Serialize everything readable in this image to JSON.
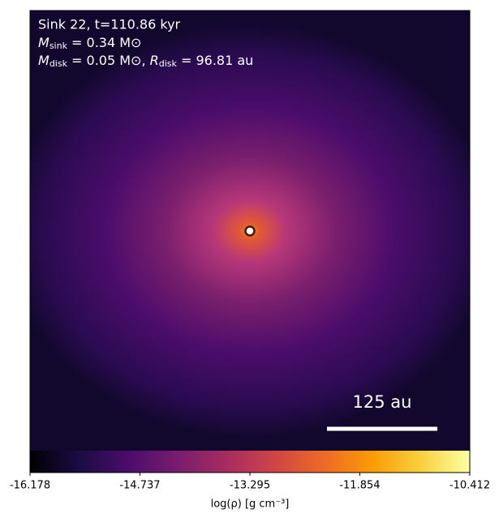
{
  "chart_data": {
    "type": "density-map",
    "title": {
      "sink": "Sink 22, t=110.86 kyr",
      "mass_sink": {
        "symbol": "M",
        "sub": "sink",
        "rest": " = 0.34 M⊙"
      },
      "mass_disk": {
        "symbol": "M",
        "sub": "disk",
        "rest": " = 0.05 M⊙, ",
        "symbol2": "R",
        "sub2": "disk",
        "rest2": " = 96.81 au"
      }
    },
    "scale_bar_label": "125 au",
    "colormap": "inferno",
    "colorbar_label": "log(ρ) [g cm⁻³]",
    "clim": [
      -16.178,
      -10.412
    ],
    "cticks": [
      -16.178,
      -14.737,
      -13.295,
      -11.854,
      -10.412
    ]
  }
}
